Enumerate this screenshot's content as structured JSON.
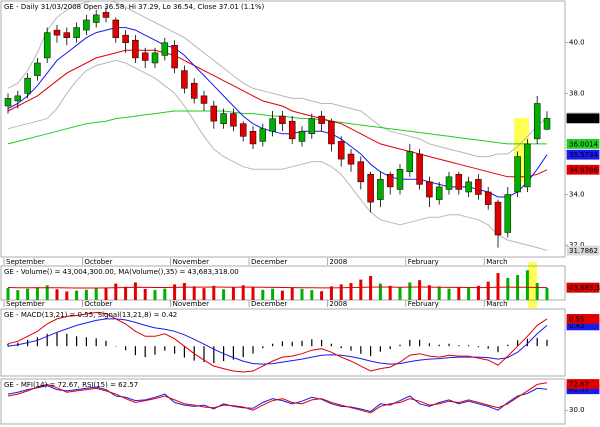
{
  "chart_data": [
    {
      "type": "candlestick",
      "title": "GE - Daily 31/03/2008 Open 36.58, Hi 37.29, Lo 36.54, Close 37.01 (1.1%)",
      "categories": [
        "September",
        null,
        null,
        null,
        null,
        null,
        null,
        null,
        "October",
        null,
        null,
        null,
        null,
        null,
        null,
        null,
        null,
        "November",
        null,
        null,
        null,
        null,
        null,
        null,
        null,
        "December",
        null,
        null,
        null,
        null,
        null,
        null,
        null,
        "2008",
        null,
        null,
        null,
        null,
        null,
        null,
        null,
        "February",
        null,
        null,
        null,
        null,
        null,
        null,
        null,
        "March",
        null,
        null,
        null,
        null,
        null,
        null
      ],
      "ylim": [
        31.53,
        41.65
      ],
      "yticks": [
        {
          "value": 32,
          "label": "32.0"
        },
        {
          "value": 34,
          "label": "34.0"
        },
        {
          "value": 38,
          "label": "38.0"
        },
        {
          "value": 40,
          "label": "40.0"
        }
      ],
      "series": [
        {
          "up_color": "#00b000",
          "down_color": "#e00000",
          "open": [
            37.5,
            37.7,
            38.0,
            38.7,
            39.4,
            40.5,
            40.4,
            40.2,
            40.5,
            40.8,
            41.2,
            40.9,
            40.3,
            40.1,
            39.6,
            39.2,
            39.5,
            39.9,
            38.9,
            38.4,
            37.9,
            37.5,
            36.8,
            37.2,
            36.8,
            36.5,
            36.1,
            36.5,
            37.1,
            36.9,
            36.1,
            36.4,
            37.1,
            36.9,
            36.1,
            35.6,
            35.3,
            34.8,
            33.8,
            34.8,
            34.2,
            34.9,
            35.6,
            34.5,
            33.8,
            34.2,
            34.8,
            34.1,
            34.6,
            34.1,
            33.7,
            32.5,
            34.1,
            34.3,
            36.2,
            36.58
          ],
          "high": [
            38.0,
            38.1,
            38.8,
            39.4,
            40.6,
            40.7,
            40.6,
            40.8,
            41.1,
            41.3,
            41.4,
            41.0,
            40.5,
            40.3,
            39.8,
            39.8,
            40.2,
            40.1,
            39.1,
            38.6,
            38.1,
            37.7,
            37.4,
            37.4,
            36.9,
            36.7,
            36.8,
            37.3,
            37.3,
            37.1,
            36.7,
            37.2,
            37.3,
            37.0,
            36.3,
            35.8,
            35.5,
            34.9,
            34.9,
            34.9,
            35.2,
            36.0,
            35.8,
            34.7,
            34.5,
            34.9,
            34.9,
            34.7,
            34.8,
            34.3,
            33.8,
            34.3,
            35.7,
            36.2,
            37.9,
            37.29
          ],
          "low": [
            37.2,
            37.4,
            37.8,
            38.5,
            39.2,
            40.0,
            39.9,
            40.0,
            40.3,
            40.6,
            40.8,
            40.0,
            39.6,
            39.2,
            39.0,
            39.0,
            39.3,
            38.8,
            38.0,
            37.6,
            37.3,
            36.6,
            36.6,
            36.5,
            36.1,
            35.8,
            35.9,
            36.3,
            36.5,
            36.0,
            35.9,
            36.2,
            36.5,
            35.7,
            35.1,
            34.9,
            34.2,
            33.3,
            33.5,
            34.0,
            34.0,
            34.7,
            34.2,
            33.5,
            33.6,
            34.0,
            34.0,
            33.9,
            33.8,
            33.4,
            31.9,
            32.3,
            33.9,
            34.1,
            36.0,
            36.54
          ],
          "close": [
            37.8,
            37.9,
            38.6,
            39.2,
            40.4,
            40.3,
            40.2,
            40.6,
            40.9,
            41.1,
            41.0,
            40.2,
            40.0,
            39.4,
            39.3,
            39.6,
            40.0,
            39.0,
            38.2,
            37.8,
            37.6,
            36.9,
            37.2,
            36.7,
            36.3,
            36.0,
            36.6,
            37.0,
            36.8,
            36.2,
            36.5,
            37.0,
            36.8,
            36.0,
            35.4,
            35.2,
            34.5,
            33.7,
            34.6,
            34.3,
            35.0,
            35.7,
            34.4,
            33.9,
            34.3,
            34.7,
            34.2,
            34.5,
            34.0,
            33.6,
            32.4,
            34.0,
            35.5,
            36.0,
            37.6,
            37.01
          ]
        }
      ],
      "overlays": [
        {
          "color": "#b8b8b8",
          "values": [
            38.2,
            38.4,
            38.9,
            39.6,
            40.5,
            41.0,
            41.3,
            41.5,
            41.6,
            41.7,
            41.7,
            41.6,
            41.4,
            41.2,
            41.0,
            40.8,
            40.6,
            40.4,
            40.2,
            39.9,
            39.6,
            39.3,
            39.0,
            38.7,
            38.4,
            38.2,
            38.1,
            38.0,
            37.9,
            37.8,
            37.8,
            37.7,
            37.6,
            37.6,
            37.5,
            37.4,
            37.3,
            37.0,
            36.7,
            36.5,
            36.4,
            36.3,
            36.2,
            36.0,
            35.9,
            35.8,
            35.7,
            35.6,
            35.5,
            35.5,
            35.6,
            35.6,
            35.9,
            36.3,
            36.7,
            37.0614
          ]
        },
        {
          "color": "#b8b8b8",
          "values": [
            36.6,
            36.7,
            36.8,
            36.9,
            37.0,
            37.4,
            38.0,
            38.5,
            38.9,
            39.1,
            39.2,
            39.3,
            39.2,
            39.0,
            38.8,
            38.6,
            38.3,
            38.0,
            37.5,
            36.9,
            36.3,
            35.8,
            35.5,
            35.3,
            35.1,
            35.0,
            35.0,
            35.0,
            35.0,
            35.1,
            35.2,
            35.3,
            35.3,
            35.1,
            34.8,
            34.3,
            33.8,
            33.3,
            33.0,
            32.9,
            32.8,
            32.9,
            33.0,
            33.1,
            33.1,
            33.2,
            33.2,
            33.1,
            33.0,
            32.8,
            32.4,
            32.2,
            32.1,
            32.0,
            31.9,
            31.7862
          ]
        },
        {
          "color": "#22cc22",
          "values": [
            36.0,
            36.1,
            36.2,
            36.3,
            36.4,
            36.5,
            36.6,
            36.7,
            36.8,
            36.85,
            36.9,
            37.0,
            37.05,
            37.1,
            37.15,
            37.2,
            37.25,
            37.3,
            37.3,
            37.3,
            37.3,
            37.3,
            37.3,
            37.25,
            37.2,
            37.2,
            37.15,
            37.1,
            37.1,
            37.05,
            37.0,
            37.0,
            36.95,
            36.9,
            36.85,
            36.8,
            36.75,
            36.7,
            36.65,
            36.6,
            36.55,
            36.5,
            36.45,
            36.4,
            36.35,
            36.3,
            36.25,
            36.2,
            36.15,
            36.1,
            36.05,
            36.0,
            36.0,
            36.0,
            36.0,
            36.0014
          ]
        },
        {
          "color": "#e00000",
          "values": [
            37.3,
            37.5,
            37.7,
            37.9,
            38.2,
            38.5,
            38.8,
            39.0,
            39.2,
            39.4,
            39.5,
            39.6,
            39.7,
            39.7,
            39.7,
            39.7,
            39.6,
            39.5,
            39.3,
            39.1,
            38.9,
            38.7,
            38.5,
            38.3,
            38.1,
            37.9,
            37.7,
            37.6,
            37.5,
            37.3,
            37.2,
            37.1,
            37.0,
            36.9,
            36.8,
            36.6,
            36.4,
            36.2,
            36.0,
            35.9,
            35.8,
            35.7,
            35.6,
            35.5,
            35.4,
            35.3,
            35.2,
            35.1,
            35.0,
            34.9,
            34.8,
            34.7,
            34.7,
            34.7,
            34.8,
            34.9786
          ]
        },
        {
          "color": "#1a1aee",
          "values": [
            37.4,
            37.6,
            37.9,
            38.3,
            38.8,
            39.3,
            39.6,
            39.9,
            40.2,
            40.4,
            40.5,
            40.6,
            40.6,
            40.5,
            40.3,
            40.1,
            39.9,
            39.8,
            39.5,
            39.1,
            38.7,
            38.3,
            37.9,
            37.5,
            37.1,
            36.8,
            36.6,
            36.5,
            36.4,
            36.4,
            36.5,
            36.5,
            36.5,
            36.4,
            36.2,
            35.9,
            35.6,
            35.2,
            34.9,
            34.7,
            34.6,
            34.6,
            34.6,
            34.5,
            34.4,
            34.3,
            34.3,
            34.3,
            34.2,
            34.1,
            33.9,
            33.9,
            34.1,
            34.5,
            35.0,
            35.5734
          ]
        }
      ]
    },
    {
      "type": "bar",
      "title": "GE - Volume() = 43,004,300.00, MA(Volume(),35) = 43,683,318.00",
      "ylim": [
        0,
        120000000
      ],
      "series": [
        {
          "color": "#00b000",
          "last_label": "43,004,300",
          "values": [
            42000000,
            35000000,
            40000000,
            45000000,
            52000000,
            38000000,
            30000000,
            33000000,
            36000000,
            41000000,
            44000000,
            58000000,
            47000000,
            62000000,
            39000000,
            35000000,
            40000000,
            55000000,
            60000000,
            48000000,
            42000000,
            50000000,
            38000000,
            44000000,
            52000000,
            46000000,
            36000000,
            40000000,
            33000000,
            45000000,
            39000000,
            35000000,
            31000000,
            48000000,
            55000000,
            60000000,
            72000000,
            85000000,
            58000000,
            50000000,
            45000000,
            62000000,
            70000000,
            52000000,
            48000000,
            40000000,
            46000000,
            42000000,
            50000000,
            65000000,
            95000000,
            78000000,
            88000000,
            105000000,
            60000000,
            43004300
          ]
        },
        {
          "type": "line",
          "color": "#e00000",
          "last_label": "43,683,318",
          "values": [
            44000000,
            43500000,
            43000000,
            43000000,
            43500000,
            43200000,
            42800000,
            42500000,
            42300000,
            42400000,
            42800000,
            43500000,
            44000000,
            44800000,
            44500000,
            44200000,
            44000000,
            44500000,
            45200000,
            45600000,
            45500000,
            45800000,
            45400000,
            45300000,
            45600000,
            45600000,
            45000000,
            44600000,
            44000000,
            43800000,
            43500000,
            43000000,
            42600000,
            42800000,
            43300000,
            44200000,
            44500000,
            45500000,
            45800000,
            45600000,
            45200000,
            45400000,
            45800000,
            45600000,
            45200000,
            44600000,
            44300000,
            44000000,
            43800000,
            44200000,
            45200000,
            45400000,
            45000000,
            44800000,
            44100000,
            43683318
          ]
        }
      ]
    },
    {
      "type": "line",
      "title": "GE - MACD(13,21) = 0.55, Signal(13,21,8) = 0.42",
      "ylim": [
        -0.6,
        0.75
      ],
      "series": [
        {
          "type": "bar",
          "color": "#000000",
          "values": [
            0.05,
            0.07,
            0.13,
            0.18,
            0.25,
            0.27,
            0.25,
            0.2,
            0.18,
            0.16,
            0.11,
            0,
            -0.08,
            -0.18,
            -0.22,
            -0.17,
            -0.09,
            -0.15,
            -0.23,
            -0.29,
            -0.32,
            -0.34,
            -0.3,
            -0.27,
            -0.22,
            -0.15,
            -0.04,
            0.05,
            0.1,
            0.09,
            0.11,
            0.14,
            0.13,
            0.05,
            -0.04,
            -0.09,
            -0.15,
            -0.2,
            -0.11,
            -0.06,
            0.03,
            0.13,
            0.13,
            0.06,
            0.03,
            0.05,
            0.02,
            0.02,
            -0.02,
            -0.05,
            -0.12,
            0.03,
            0.12,
            0.15,
            0.17,
            0.13
          ]
        },
        {
          "color": "#1a1aee",
          "values": [
            0.0,
            0.03,
            0.07,
            0.12,
            0.2,
            0.28,
            0.35,
            0.42,
            0.47,
            0.52,
            0.55,
            0.55,
            0.53,
            0.48,
            0.42,
            0.37,
            0.34,
            0.3,
            0.23,
            0.14,
            0.04,
            -0.06,
            -0.15,
            -0.23,
            -0.3,
            -0.35,
            -0.36,
            -0.35,
            -0.32,
            -0.29,
            -0.26,
            -0.22,
            -0.18,
            -0.17,
            -0.18,
            -0.21,
            -0.25,
            -0.3,
            -0.34,
            -0.36,
            -0.35,
            -0.31,
            -0.28,
            -0.26,
            -0.25,
            -0.23,
            -0.22,
            -0.22,
            -0.22,
            -0.23,
            -0.26,
            -0.23,
            -0.12,
            0.05,
            0.25,
            0.42
          ]
        },
        {
          "color": "#e00000",
          "values": [
            0.05,
            0.1,
            0.2,
            0.3,
            0.45,
            0.55,
            0.6,
            0.62,
            0.65,
            0.68,
            0.66,
            0.55,
            0.45,
            0.3,
            0.2,
            0.2,
            0.25,
            0.15,
            0.0,
            -0.15,
            -0.28,
            -0.4,
            -0.45,
            -0.5,
            -0.52,
            -0.5,
            -0.4,
            -0.3,
            -0.22,
            -0.2,
            -0.15,
            -0.08,
            -0.05,
            -0.12,
            -0.22,
            -0.3,
            -0.4,
            -0.5,
            -0.45,
            -0.42,
            -0.32,
            -0.18,
            -0.15,
            -0.2,
            -0.22,
            -0.18,
            -0.2,
            -0.2,
            -0.24,
            -0.28,
            -0.38,
            -0.2,
            0.0,
            0.2,
            0.42,
            0.55
          ]
        }
      ]
    },
    {
      "type": "line",
      "title": "GE - MFI(14) = 72.67, RSI(15) = 62.57",
      "ylim": [
        8.7,
        78.4
      ],
      "yticks": [
        {
          "value": 30,
          "label": "30.0"
        }
      ],
      "series": [
        {
          "color": "#1a1aee",
          "values": [
            55,
            58,
            62,
            65,
            68,
            62,
            60,
            62,
            64,
            66,
            62,
            52,
            50,
            45,
            46,
            50,
            55,
            42,
            38,
            36,
            38,
            32,
            40,
            36,
            34,
            33,
            42,
            48,
            45,
            40,
            44,
            50,
            47,
            40,
            36,
            35,
            32,
            28,
            40,
            38,
            45,
            52,
            40,
            36,
            42,
            46,
            40,
            44,
            40,
            36,
            30,
            42,
            52,
            56,
            64,
            62.57
          ]
        },
        {
          "color": "#e00000",
          "values": [
            52,
            55,
            60,
            66,
            70,
            65,
            58,
            60,
            62,
            64,
            60,
            55,
            48,
            42,
            45,
            48,
            52,
            46,
            40,
            38,
            35,
            34,
            38,
            37,
            35,
            30,
            38,
            45,
            48,
            42,
            40,
            46,
            48,
            42,
            38,
            34,
            30,
            26,
            36,
            40,
            42,
            48,
            44,
            38,
            40,
            44,
            42,
            46,
            42,
            38,
            34,
            40,
            50,
            60,
            70,
            72.67
          ]
        }
      ]
    }
  ]
}
